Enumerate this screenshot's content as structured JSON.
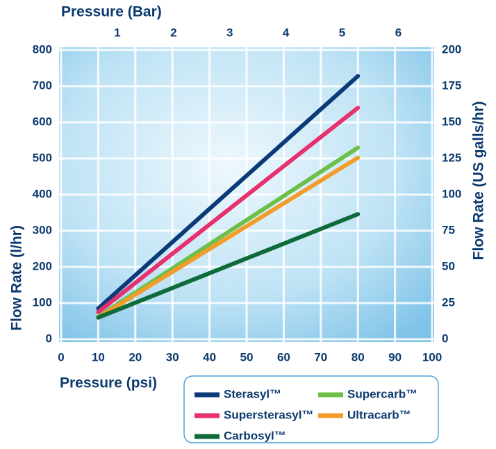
{
  "chart_data": {
    "type": "line",
    "x_title": "Pressure (psi)",
    "x2_title": "Pressure (Bar)",
    "y_title": "Flow Rate (l/hr)",
    "y2_title": "Flow Rate (US galls/hr)",
    "x": [
      10,
      80
    ],
    "series": [
      {
        "name": "Sterasyl™",
        "color": "#0b3a78",
        "values": [
          85,
          728
        ]
      },
      {
        "name": "Supersterasyl™",
        "color": "#e8306e",
        "values": [
          75,
          640
        ]
      },
      {
        "name": "Supercarb™",
        "color": "#6cc04a",
        "values": [
          62,
          530
        ]
      },
      {
        "name": "Ultracarb™",
        "color": "#f39c2a",
        "values": [
          60,
          502
        ]
      },
      {
        "name": "Carbosyl™",
        "color": "#0f6b3a",
        "values": [
          60,
          346
        ]
      }
    ],
    "xlim": [
      0,
      100
    ],
    "xticks": [
      0,
      10,
      20,
      30,
      40,
      50,
      60,
      70,
      80,
      90,
      100
    ],
    "x2lim": [
      0,
      6.6
    ],
    "x2ticks": [
      1,
      2,
      3,
      4,
      5,
      6
    ],
    "ylim": [
      0,
      800
    ],
    "yticks": [
      0,
      100,
      200,
      300,
      400,
      500,
      600,
      700,
      800
    ],
    "y2lim": [
      0,
      200
    ],
    "y2ticks": [
      0,
      25,
      50,
      75,
      100,
      125,
      150,
      175,
      200
    ],
    "grid": true
  }
}
